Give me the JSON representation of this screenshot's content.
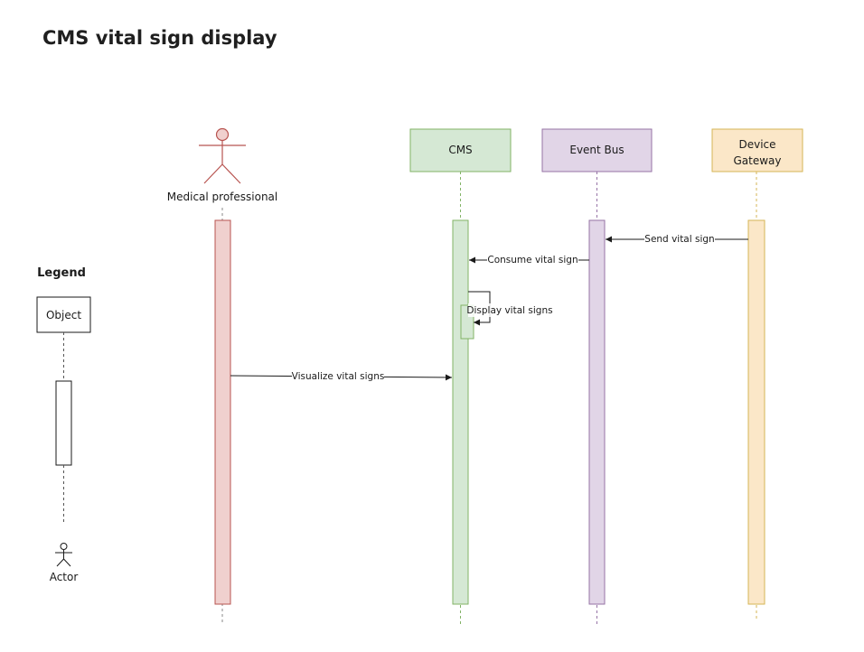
{
  "title": "CMS vital sign display",
  "participants": {
    "actor": {
      "label": "Medical professional",
      "fill": "#f0d0ce",
      "stroke": "#b85450"
    },
    "cms": {
      "label": "CMS",
      "fill": "#d5e8d4",
      "stroke": "#82b366"
    },
    "event_bus": {
      "label": "Event Bus",
      "fill": "#e1d5e7",
      "stroke": "#9673a6"
    },
    "device_gateway": {
      "label_line1": "Device",
      "label_line2": "Gateway",
      "fill": "#fbe7c8",
      "stroke": "#d6b656"
    }
  },
  "messages": {
    "send_vital_sign": "Send vital sign",
    "consume_vital_sign": "Consume vital sign",
    "display_vital_signs": "Display vital signs",
    "visualize_vital_signs": "Visualize vital signs"
  },
  "legend": {
    "heading": "Legend",
    "object": "Object",
    "actor": "Actor"
  }
}
